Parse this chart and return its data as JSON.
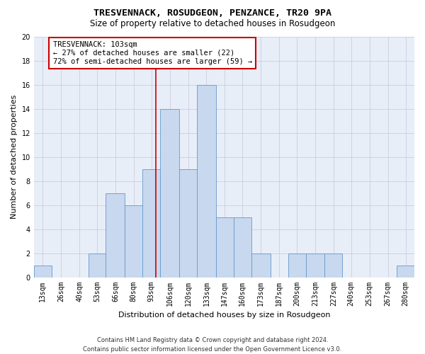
{
  "title": "TRESVENNACK, ROSUDGEON, PENZANCE, TR20 9PA",
  "subtitle": "Size of property relative to detached houses in Rosudgeon",
  "xlabel": "Distribution of detached houses by size in Rosudgeon",
  "ylabel": "Number of detached properties",
  "bar_edges": [
    13,
    26,
    40,
    53,
    66,
    80,
    93,
    106,
    120,
    133,
    147,
    160,
    173,
    187,
    200,
    213,
    227,
    240,
    253,
    267,
    280
  ],
  "bar_heights": [
    1,
    0,
    0,
    2,
    7,
    6,
    9,
    14,
    9,
    16,
    5,
    5,
    2,
    0,
    2,
    2,
    2,
    0,
    0,
    0,
    1
  ],
  "bar_color": "#c8d8ee",
  "bar_edgecolor": "#6699cc",
  "vline_x": 103,
  "vline_color": "#cc0000",
  "annotation_text": "TRESVENNACK: 103sqm\n← 27% of detached houses are smaller (22)\n72% of semi-detached houses are larger (59) →",
  "annotation_box_color": "#ffffff",
  "annotation_box_edgecolor": "#cc0000",
  "ylim": [
    0,
    20
  ],
  "yticks": [
    0,
    2,
    4,
    6,
    8,
    10,
    12,
    14,
    16,
    18,
    20
  ],
  "grid_color": "#ccccdd",
  "bg_color": "#e8eef8",
  "footer": "Contains HM Land Registry data © Crown copyright and database right 2024.\nContains public sector information licensed under the Open Government Licence v3.0.",
  "title_fontsize": 9.5,
  "subtitle_fontsize": 8.5,
  "xlabel_fontsize": 8,
  "ylabel_fontsize": 8,
  "tick_fontsize": 7,
  "annotation_fontsize": 7.5,
  "footer_fontsize": 6
}
